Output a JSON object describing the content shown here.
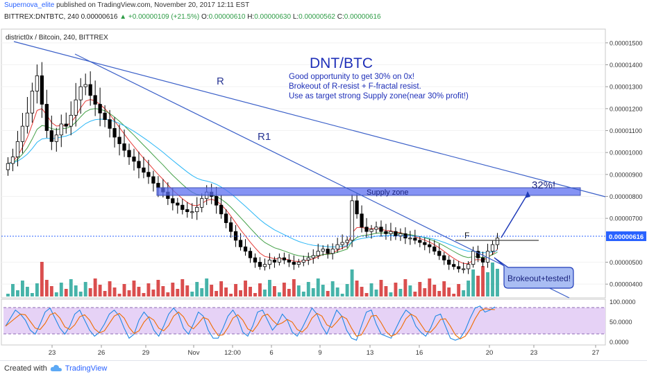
{
  "header": {
    "author": "Supernova_elite",
    "published": "published on TradingView.com, November 20, 2017 12:11 EST",
    "symbol_line": "BITTREX:DNTBTC, 240",
    "last": "0.00000616",
    "change": "+0.00000109 (+21.5%)",
    "o_label": "O:",
    "o": "0.00000610",
    "h_label": "H:",
    "h": "0.00000630",
    "l_label": "L:",
    "l": "0.00000562",
    "c_label": "C:",
    "c": "0.00000616"
  },
  "chart_title": "district0x / Bitcoin, 240, BITTREX",
  "annotations": {
    "title": "DNT/BTC",
    "lines": [
      "Good opportunity to get 30% on 0x!",
      "Brokeout of R-resist + F-fractal resist.",
      "Use as target strong Supply zone(near 30% profit!)"
    ],
    "r_label": "R",
    "r1_label": "R1",
    "supply_label": "Supply zone",
    "f_label": "F",
    "target_label": "32%!",
    "callout": "Brokeout+tested!"
  },
  "price_badge": "0.00000616",
  "colors": {
    "up": "#26a69a",
    "down": "#d32f2f",
    "candle": "#000000",
    "trend": "#3a5fc8",
    "supply": "#5c6ff0",
    "callout_bg": "#a9bdf3",
    "stoch_band": "#e6d2f6",
    "ema_fast": "#e53935",
    "ema_mid": "#43a047",
    "ema_slow": "#29b6f6",
    "stoch_k": "#1e88e5",
    "stoch_d": "#ef6c00"
  },
  "chart_data": {
    "type": "candlestick",
    "title": "district0x / Bitcoin, 240, BITTREX",
    "x_tick_labels": [
      "23",
      "26",
      "29",
      "Nov",
      "12:00",
      "6",
      "9",
      "13",
      "16",
      "20",
      "23",
      "27"
    ],
    "y_ticks": [
      "0.00001500",
      "0.00001400",
      "0.00001300",
      "0.00001200",
      "0.00001100",
      "0.00001000",
      "0.00000900",
      "0.00000800",
      "0.00000700",
      "0.00000500",
      "0.00000400"
    ],
    "ylim": [
      3.5e-06,
      1.55e-05
    ],
    "last_price": 6.16e-06,
    "supply_zone": [
      8e-06,
      8.3e-06
    ],
    "close_series": [
      9.5e-06,
      9.8e-06,
      1.05e-05,
      1.12e-05,
      1.18e-05,
      1.28e-05,
      1.35e-05,
      1.22e-05,
      1.1e-05,
      1.05e-05,
      1.08e-05,
      1.13e-05,
      1.12e-05,
      1.17e-05,
      1.24e-05,
      1.3e-05,
      1.31e-05,
      1.26e-05,
      1.22e-05,
      1.18e-05,
      1.15e-05,
      1.11e-05,
      1.07e-05,
      1.04e-05,
      1.01e-05,
      9.8e-06,
      9.6e-06,
      9.3e-06,
      9.1e-06,
      8.9e-06,
      8.6e-06,
      8.4e-06,
      8.2e-06,
      7.9e-06,
      7.7e-06,
      7.6e-06,
      7.4e-06,
      7.3e-06,
      7.3e-06,
      7.5e-06,
      7.9e-06,
      8.2e-06,
      8e-06,
      7.6e-06,
      7.2e-06,
      6.8e-06,
      6.4e-06,
      6e-06,
      5.7e-06,
      5.5e-06,
      5.2e-06,
      5e-06,
      4.8e-06,
      4.9e-06,
      5.1e-06,
      5e-06,
      5.2e-06,
      5.1e-06,
      5e-06,
      4.9e-06,
      5e-06,
      5.1e-06,
      5.2e-06,
      5.3e-06,
      5.5e-06,
      5.6e-06,
      5.4e-06,
      5.6e-06,
      5.8e-06,
      5.9e-06,
      6e-06,
      7.8e-06,
      7.2e-06,
      6.6e-06,
      6.4e-06,
      6.5e-06,
      6.6e-06,
      6.4e-06,
      6.3e-06,
      6.4e-06,
      6.2e-06,
      6.3e-06,
      6.1e-06,
      6.1e-06,
      6e-06,
      5.9e-06,
      5.8e-06,
      5.7e-06,
      5.5e-06,
      5.3e-06,
      5.1e-06,
      4.9e-06,
      4.8e-06,
      4.7e-06,
      4.7e-06,
      4.9e-06,
      5.5e-06,
      5.2e-06,
      5e-06,
      5.5e-06,
      5.8e-06,
      6.1e-06
    ],
    "stoch_k": [
      40,
      60,
      80,
      70,
      55,
      30,
      20,
      45,
      75,
      85,
      60,
      35,
      20,
      40,
      70,
      80,
      55,
      30,
      15,
      25,
      45,
      70,
      80,
      65,
      35,
      10,
      20,
      55,
      75,
      60,
      30,
      15,
      40,
      70,
      85,
      70,
      35,
      20,
      45,
      75,
      65,
      30,
      10,
      10,
      35,
      65,
      80,
      60,
      25,
      15,
      40,
      75,
      80,
      55,
      30,
      45,
      70,
      55,
      25,
      15,
      35,
      60,
      85,
      70,
      40,
      20,
      50,
      80,
      65,
      30,
      10,
      5,
      40,
      75,
      80,
      45,
      20,
      15,
      10,
      35,
      60,
      80,
      70,
      40,
      25,
      15,
      35,
      65,
      70,
      40,
      10,
      5,
      10,
      30,
      60,
      85,
      90,
      75,
      80,
      88
    ],
    "stoch_ylim": [
      0,
      100
    ],
    "stoch_ticks": [
      "100.0000",
      "50.0000",
      "0.0000"
    ]
  }
}
